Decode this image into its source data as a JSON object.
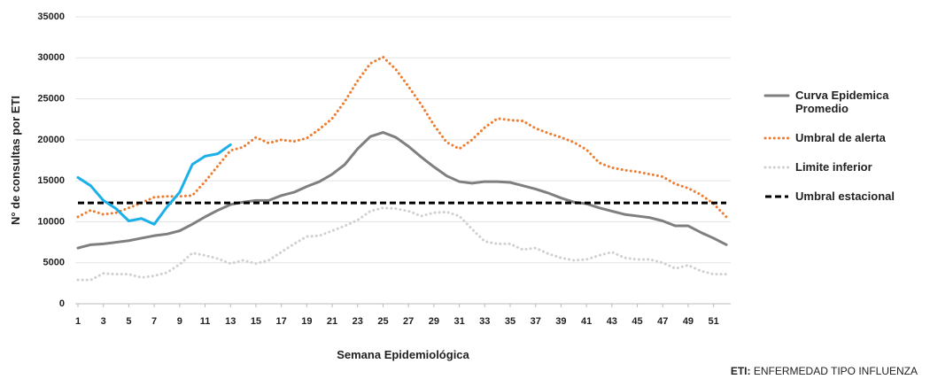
{
  "chart_data": {
    "type": "line",
    "y_label": "N° de consultas por ETI",
    "x_label": "Semana Epidemiológica",
    "x": [
      1,
      2,
      3,
      4,
      5,
      6,
      7,
      8,
      9,
      10,
      11,
      12,
      13,
      14,
      15,
      16,
      17,
      18,
      19,
      20,
      21,
      22,
      23,
      24,
      25,
      26,
      27,
      28,
      29,
      30,
      31,
      32,
      33,
      34,
      35,
      36,
      37,
      38,
      39,
      40,
      41,
      42,
      43,
      44,
      45,
      46,
      47,
      48,
      49,
      50,
      51,
      52
    ],
    "xlim": [
      1,
      52
    ],
    "xticks": [
      1,
      3,
      5,
      7,
      9,
      11,
      13,
      15,
      17,
      19,
      21,
      23,
      25,
      27,
      29,
      31,
      33,
      35,
      37,
      39,
      41,
      43,
      45,
      47,
      49,
      51
    ],
    "ylim": [
      0,
      35000
    ],
    "yticks": [
      0,
      5000,
      10000,
      15000,
      20000,
      25000,
      30000,
      35000
    ],
    "grid": true,
    "legend": "right",
    "series": [
      {
        "name": "Curva Epidemica Promedio",
        "color": "#7f7f7f",
        "style": "solid",
        "values": [
          6800,
          7200,
          7300,
          7500,
          7700,
          8000,
          8300,
          8500,
          8900,
          9700,
          10600,
          11400,
          12100,
          12400,
          12600,
          12600,
          13200,
          13600,
          14300,
          14900,
          15800,
          17000,
          18900,
          20400,
          20900,
          20300,
          19200,
          17900,
          16700,
          15600,
          14900,
          14700,
          14900,
          14900,
          14800,
          14400,
          14000,
          13500,
          12900,
          12400,
          12200,
          11700,
          11300,
          10900,
          10700,
          10500,
          10100,
          9500,
          9500,
          8700,
          8000,
          7200
        ]
      },
      {
        "name": "Umbral de alerta",
        "color": "#ed7d31",
        "style": "dotted",
        "values": [
          10600,
          11400,
          10900,
          11100,
          11700,
          12300,
          13000,
          13100,
          13100,
          13200,
          14900,
          16800,
          18700,
          19100,
          20300,
          19600,
          20000,
          19800,
          20200,
          21300,
          22600,
          24700,
          27200,
          29300,
          30100,
          28600,
          26500,
          24300,
          21800,
          19700,
          18900,
          20000,
          21500,
          22600,
          22400,
          22300,
          21400,
          20800,
          20300,
          19700,
          18800,
          17200,
          16600,
          16300,
          16100,
          15800,
          15500,
          14600,
          14100,
          13300,
          12200,
          10600
        ]
      },
      {
        "name": "Limite inferior",
        "color": "#d0d0d0",
        "style": "dotted",
        "values": [
          2900,
          2900,
          3700,
          3600,
          3600,
          3200,
          3400,
          3800,
          4800,
          6200,
          5900,
          5500,
          4900,
          5300,
          4900,
          5300,
          6300,
          7300,
          8200,
          8300,
          8900,
          9500,
          10200,
          11300,
          11700,
          11600,
          11300,
          10700,
          11100,
          11200,
          10700,
          9100,
          7600,
          7300,
          7300,
          6600,
          6800,
          6100,
          5600,
          5300,
          5400,
          5900,
          6300,
          5600,
          5400,
          5400,
          5000,
          4300,
          4700,
          4000,
          3600,
          3600
        ]
      },
      {
        "name": "Umbral estacional",
        "color": "#000000",
        "style": "dashed",
        "values": [
          12300,
          12300,
          12300,
          12300,
          12300,
          12300,
          12300,
          12300,
          12300,
          12300,
          12300,
          12300,
          12300,
          12300,
          12300,
          12300,
          12300,
          12300,
          12300,
          12300,
          12300,
          12300,
          12300,
          12300,
          12300,
          12300,
          12300,
          12300,
          12300,
          12300,
          12300,
          12300,
          12300,
          12300,
          12300,
          12300,
          12300,
          12300,
          12300,
          12300,
          12300,
          12300,
          12300,
          12300,
          12300,
          12300,
          12300,
          12300,
          12300,
          12300,
          12300,
          12300
        ]
      },
      {
        "color": "#1cb0e8",
        "style": "solid",
        "values": [
          15400,
          14400,
          12600,
          11600,
          10100,
          10400,
          9700,
          11800,
          13600,
          17000,
          18000,
          18300,
          19400,
          null,
          null,
          null,
          null,
          null,
          null,
          null,
          null,
          null,
          null,
          null,
          null,
          null,
          null,
          null,
          null,
          null,
          null,
          null,
          null,
          null,
          null,
          null,
          null,
          null,
          null,
          null,
          null,
          null,
          null,
          null,
          null,
          null,
          null,
          null,
          null,
          null,
          null,
          null
        ]
      }
    ],
    "footnote": {
      "label": "ETI:",
      "text": "ENFERMEDAD TIPO INFLUENZA"
    }
  }
}
